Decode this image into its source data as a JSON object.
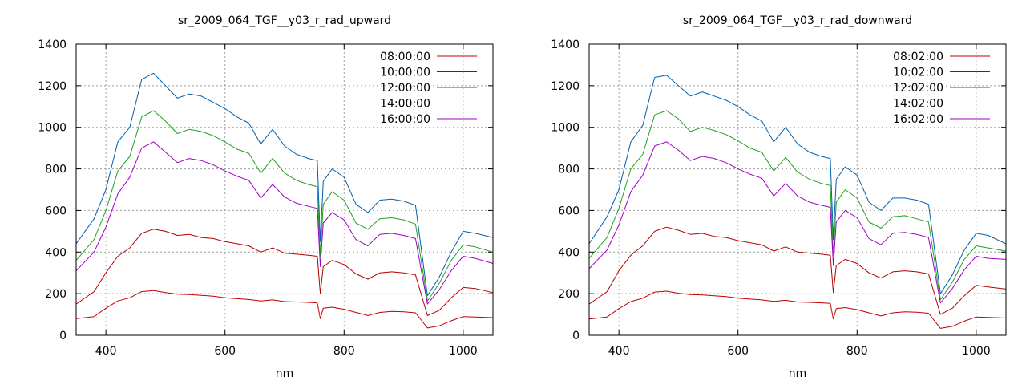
{
  "chart_data": [
    {
      "type": "line",
      "title": "sr_2009_064_TGF__y03_r_rad_upward",
      "xlabel": "nm",
      "ylabel": "",
      "xlim": [
        350,
        1050
      ],
      "ylim": [
        0,
        1400
      ],
      "xticks": [
        400,
        600,
        800,
        1000
      ],
      "yticks": [
        0,
        200,
        400,
        600,
        800,
        1000,
        1200,
        1400
      ],
      "grid": true,
      "legend": "top-right",
      "x": [
        350,
        380,
        400,
        420,
        440,
        460,
        480,
        500,
        520,
        540,
        560,
        580,
        600,
        620,
        640,
        660,
        680,
        700,
        720,
        740,
        755,
        760,
        765,
        780,
        800,
        820,
        840,
        860,
        880,
        900,
        920,
        940,
        960,
        980,
        1000,
        1020,
        1050
      ],
      "series": [
        {
          "name": "08:00:00",
          "color": "#c00000",
          "values": [
            80,
            90,
            130,
            165,
            180,
            210,
            215,
            205,
            198,
            196,
            192,
            188,
            180,
            176,
            172,
            165,
            170,
            162,
            160,
            158,
            155,
            80,
            130,
            135,
            125,
            110,
            95,
            110,
            115,
            113,
            108,
            35,
            45,
            70,
            90,
            88,
            85
          ]
        },
        {
          "name": "10:00:00",
          "color": "#b30000",
          "values": [
            150,
            210,
            300,
            380,
            420,
            490,
            510,
            500,
            480,
            485,
            470,
            465,
            450,
            440,
            430,
            400,
            420,
            395,
            390,
            385,
            380,
            200,
            330,
            360,
            340,
            295,
            270,
            300,
            305,
            300,
            290,
            95,
            120,
            180,
            230,
            225,
            205
          ]
        },
        {
          "name": "12:00:00",
          "color": "#0060ad",
          "values": [
            440,
            560,
            700,
            930,
            1000,
            1230,
            1260,
            1200,
            1140,
            1160,
            1150,
            1120,
            1090,
            1050,
            1020,
            920,
            990,
            910,
            870,
            850,
            840,
            450,
            740,
            800,
            760,
            630,
            590,
            650,
            655,
            645,
            625,
            190,
            280,
            400,
            500,
            490,
            470
          ]
        },
        {
          "name": "14:00:00",
          "color": "#22a022",
          "values": [
            360,
            460,
            600,
            790,
            860,
            1050,
            1080,
            1030,
            970,
            990,
            980,
            960,
            930,
            895,
            875,
            780,
            850,
            780,
            745,
            725,
            715,
            380,
            630,
            690,
            650,
            540,
            510,
            560,
            565,
            555,
            535,
            165,
            250,
            360,
            435,
            425,
            400
          ]
        },
        {
          "name": "16:00:00",
          "color": "#a000c8",
          "values": [
            310,
            400,
            520,
            680,
            760,
            900,
            930,
            880,
            830,
            850,
            840,
            820,
            790,
            765,
            745,
            660,
            725,
            665,
            635,
            620,
            610,
            330,
            540,
            590,
            555,
            460,
            430,
            485,
            490,
            480,
            465,
            150,
            220,
            310,
            380,
            370,
            345
          ]
        }
      ]
    },
    {
      "type": "line",
      "title": "sr_2009_064_TGF__y03_r_rad_downward",
      "xlabel": "nm",
      "ylabel": "",
      "xlim": [
        350,
        1050
      ],
      "ylim": [
        0,
        1400
      ],
      "xticks": [
        400,
        600,
        800,
        1000
      ],
      "yticks": [
        0,
        200,
        400,
        600,
        800,
        1000,
        1200,
        1400
      ],
      "grid": true,
      "legend": "top-right",
      "x": [
        350,
        380,
        400,
        420,
        440,
        460,
        480,
        500,
        520,
        540,
        560,
        580,
        600,
        620,
        640,
        660,
        680,
        700,
        720,
        740,
        755,
        760,
        765,
        780,
        800,
        820,
        840,
        860,
        880,
        900,
        920,
        940,
        960,
        980,
        1000,
        1020,
        1050
      ],
      "series": [
        {
          "name": "08:02:00",
          "color": "#c00000",
          "values": [
            78,
            88,
            128,
            162,
            178,
            208,
            212,
            202,
            196,
            194,
            190,
            186,
            178,
            174,
            170,
            163,
            168,
            160,
            158,
            156,
            153,
            78,
            128,
            133,
            123,
            108,
            93,
            108,
            113,
            111,
            106,
            33,
            43,
            68,
            88,
            86,
            83
          ]
        },
        {
          "name": "10:02:00",
          "color": "#b30000",
          "values": [
            150,
            210,
            310,
            385,
            430,
            500,
            520,
            505,
            485,
            490,
            475,
            470,
            455,
            445,
            435,
            405,
            425,
            400,
            395,
            390,
            385,
            205,
            335,
            365,
            345,
            300,
            275,
            305,
            310,
            305,
            295,
            100,
            130,
            190,
            240,
            232,
            222
          ]
        },
        {
          "name": "12:02:00",
          "color": "#0060ad",
          "values": [
            440,
            570,
            700,
            930,
            1010,
            1240,
            1250,
            1200,
            1150,
            1170,
            1150,
            1130,
            1100,
            1060,
            1030,
            930,
            1000,
            920,
            880,
            860,
            850,
            460,
            750,
            810,
            770,
            640,
            600,
            660,
            660,
            650,
            630,
            200,
            290,
            410,
            490,
            480,
            440
          ]
        },
        {
          "name": "14:02:00",
          "color": "#22a022",
          "values": [
            370,
            470,
            610,
            800,
            870,
            1060,
            1080,
            1040,
            980,
            1000,
            985,
            965,
            935,
            900,
            880,
            790,
            855,
            785,
            750,
            730,
            720,
            385,
            640,
            700,
            660,
            545,
            515,
            570,
            575,
            560,
            545,
            170,
            255,
            365,
            430,
            420,
            405
          ]
        },
        {
          "name": "16:02:00",
          "color": "#a000c8",
          "values": [
            320,
            410,
            530,
            690,
            770,
            910,
            930,
            890,
            840,
            860,
            850,
            830,
            800,
            775,
            755,
            670,
            730,
            670,
            640,
            625,
            615,
            335,
            545,
            600,
            565,
            465,
            435,
            490,
            495,
            485,
            470,
            155,
            225,
            315,
            380,
            370,
            365
          ]
        }
      ]
    }
  ]
}
